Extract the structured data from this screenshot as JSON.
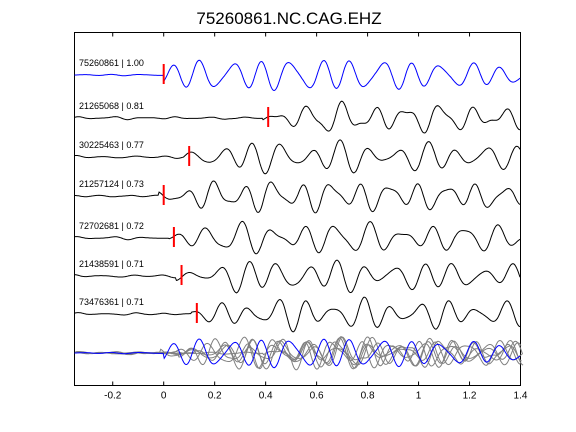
{
  "chart_data": {
    "type": "line",
    "title": "75260861.NC.CAG.EHZ",
    "xlabel": "",
    "ylabel": "",
    "xlim": [
      -0.35,
      1.4
    ],
    "x_ticks": [
      "-0.2",
      "0",
      "0.2",
      "0.4",
      "0.6",
      "0.8",
      "1",
      "1.2",
      "1.4"
    ],
    "x_tick_values": [
      -0.2,
      0,
      0.2,
      0.4,
      0.6,
      0.8,
      1.0,
      1.2,
      1.4
    ],
    "grid": false,
    "legend": "none",
    "colors": {
      "reference": "#0000ff",
      "trace": "#000000",
      "stack": "#808080",
      "pick": "#ff0000"
    },
    "series": [
      {
        "name": "75260861 | 1.00",
        "pick_time": 0.0
      },
      {
        "name": "21265068 | 0.81",
        "pick_time": 0.41
      },
      {
        "name": "30225463 | 0.77",
        "pick_time": 0.1
      },
      {
        "name": "21257124 | 0.73",
        "pick_time": 0.0
      },
      {
        "name": "72702681 | 0.72",
        "pick_time": 0.04
      },
      {
        "name": "21438591 | 0.71",
        "pick_time": 0.07
      },
      {
        "name": "73476361 | 0.71",
        "pick_time": 0.13
      }
    ]
  }
}
